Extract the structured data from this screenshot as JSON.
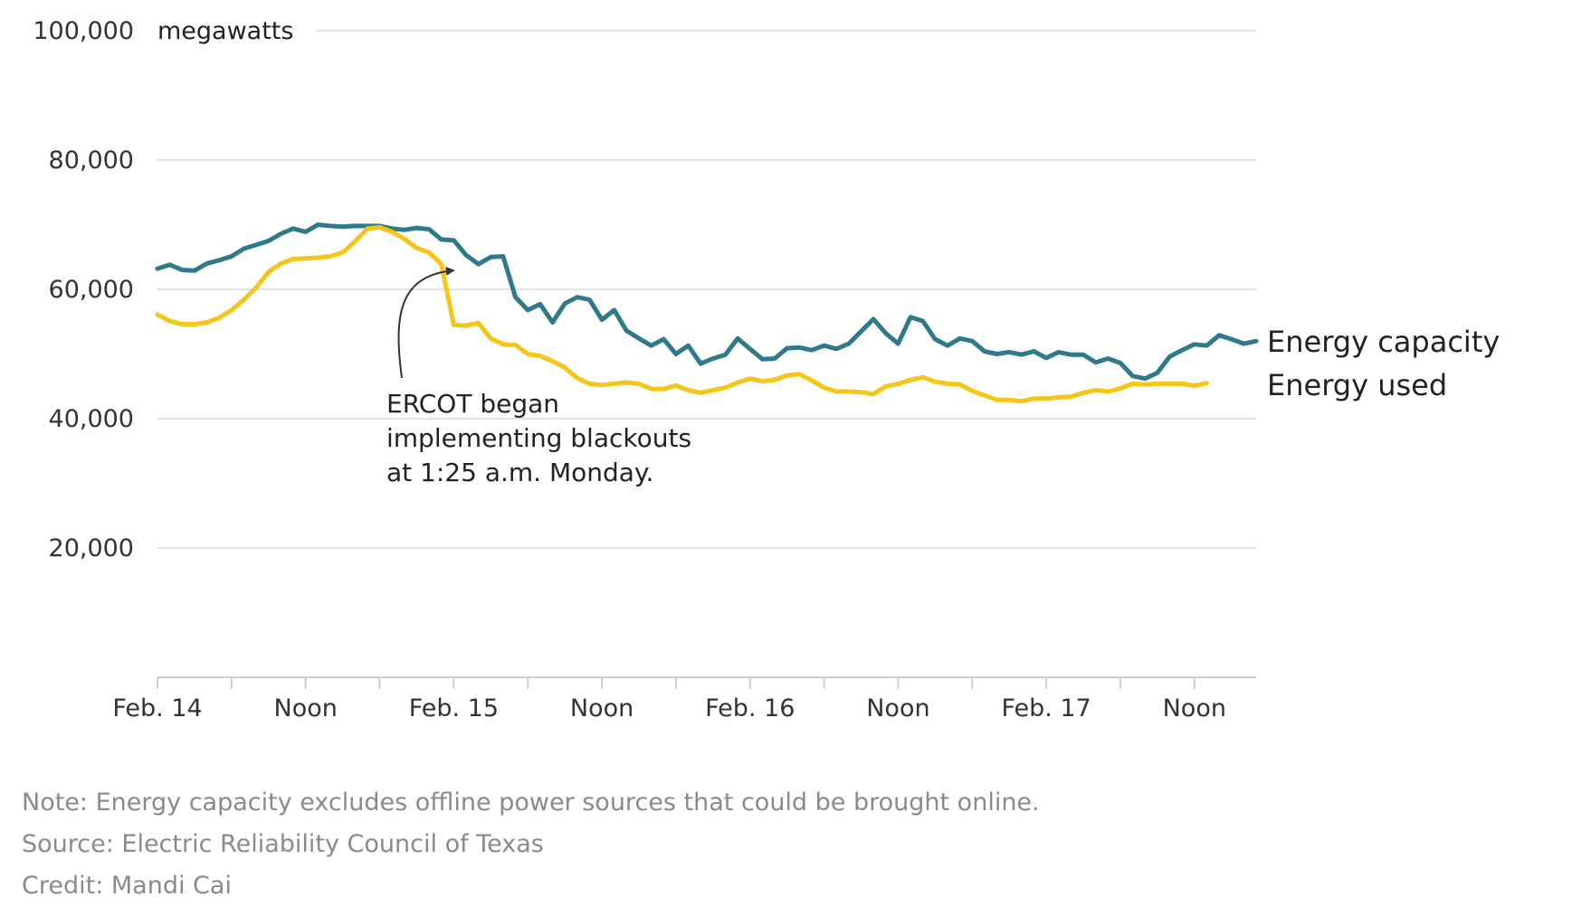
{
  "chart_data": {
    "type": "line",
    "unit_label": "megawatts",
    "ylim": [
      0,
      100000
    ],
    "y_ticks": [
      20000,
      40000,
      60000,
      80000,
      100000
    ],
    "y_tick_labels": [
      "20,000",
      "40,000",
      "60,000",
      "80,000",
      "100,000"
    ],
    "x_range_hours": [
      0,
      89
    ],
    "x_ticks": [
      {
        "hour": 0,
        "label": "Feb. 14"
      },
      {
        "hour": 12,
        "label": "Noon"
      },
      {
        "hour": 24,
        "label": "Feb. 15"
      },
      {
        "hour": 36,
        "label": "Noon"
      },
      {
        "hour": 48,
        "label": "Feb. 16"
      },
      {
        "hour": 60,
        "label": "Noon"
      },
      {
        "hour": 72,
        "label": "Feb. 17"
      },
      {
        "hour": 84,
        "label": "Noon"
      }
    ],
    "minor_tick_hours": [
      0,
      6,
      12,
      18,
      24,
      30,
      36,
      42,
      48,
      54,
      60,
      66,
      72,
      78,
      84
    ],
    "series": [
      {
        "name": "Energy capacity",
        "color": "#2f7a8a",
        "x_start_hour": 0,
        "x_step_hours": 1,
        "values": [
          63200,
          63800,
          63000,
          62900,
          64000,
          64500,
          65100,
          66300,
          66900,
          67500,
          68600,
          69400,
          68900,
          70000,
          69800,
          69700,
          69800,
          69800,
          69800,
          69400,
          69200,
          69500,
          69300,
          67700,
          67600,
          65300,
          63900,
          65000,
          65100,
          58800,
          56800,
          57700,
          54900,
          57800,
          58800,
          58400,
          55300,
          56800,
          53600,
          52400,
          51300,
          52300,
          50000,
          51300,
          48500,
          49300,
          49900,
          52400,
          50800,
          49200,
          49300,
          50900,
          51000,
          50600,
          51300,
          50800,
          51600,
          53500,
          55400,
          53200,
          51600,
          55700,
          55100,
          52300,
          51300,
          52400,
          52000,
          50400,
          50000,
          50300,
          49900,
          50400,
          49400,
          50300,
          49900,
          49900,
          48700,
          49300,
          48600,
          46600,
          46200,
          47100,
          49600,
          50600,
          51500,
          51300,
          52900,
          52300,
          51600,
          52000
        ]
      },
      {
        "name": "Energy used",
        "color": "#f5c518",
        "x_start_hour": 0,
        "x_step_hours": 1,
        "values": [
          56100,
          55100,
          54600,
          54600,
          54900,
          55600,
          56800,
          58400,
          60300,
          62700,
          64000,
          64700,
          64800,
          64900,
          65100,
          65700,
          67400,
          69400,
          69600,
          68900,
          67800,
          66400,
          65700,
          63900,
          54500,
          54400,
          54800,
          52400,
          51500,
          51400,
          50000,
          49700,
          48900,
          47900,
          46300,
          45400,
          45200,
          45400,
          45600,
          45400,
          44600,
          44600,
          45100,
          44400,
          44000,
          44400,
          44800,
          45600,
          46200,
          45800,
          46000,
          46700,
          46900,
          45900,
          44800,
          44200,
          44200,
          44100,
          43800,
          45000,
          45400,
          46000,
          46400,
          45700,
          45400,
          45300,
          44300,
          43600,
          42900,
          42900,
          42700,
          43100,
          43100,
          43300,
          43400,
          44000,
          44400,
          44200,
          44700,
          45400,
          45300,
          45400,
          45400,
          45400,
          45100,
          45500
        ]
      }
    ],
    "annotation": {
      "lines": [
        "ERCOT began",
        "implementing blackouts",
        "at 1:25 a.m. Monday."
      ],
      "target_hour": 24.4,
      "target_value": 63200
    },
    "grid": true
  },
  "footer": {
    "note": "Note: Energy capacity excludes offline power sources that could be brought online.",
    "source": "Source: Electric Reliability Council of Texas",
    "credit": "Credit: Mandi Cai"
  }
}
